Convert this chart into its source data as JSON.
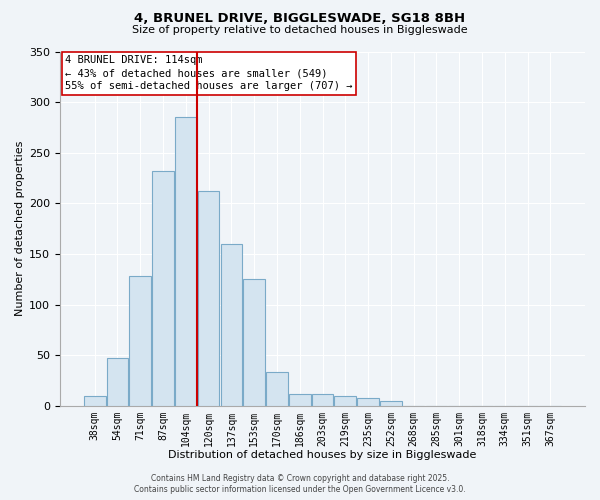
{
  "title1": "4, BRUNEL DRIVE, BIGGLESWADE, SG18 8BH",
  "title2": "Size of property relative to detached houses in Biggleswade",
  "xlabel": "Distribution of detached houses by size in Biggleswade",
  "ylabel": "Number of detached properties",
  "bar_labels": [
    "38sqm",
    "54sqm",
    "71sqm",
    "87sqm",
    "104sqm",
    "120sqm",
    "137sqm",
    "153sqm",
    "170sqm",
    "186sqm",
    "203sqm",
    "219sqm",
    "235sqm",
    "252sqm",
    "268sqm",
    "285sqm",
    "301sqm",
    "318sqm",
    "334sqm",
    "351sqm",
    "367sqm"
  ],
  "bar_values": [
    10,
    47,
    128,
    232,
    285,
    212,
    160,
    125,
    33,
    12,
    12,
    10,
    8,
    5,
    0,
    0,
    0,
    0,
    0,
    0,
    0
  ],
  "bar_color": "#d4e4f0",
  "bar_edge_color": "#7aaac8",
  "ylim": [
    0,
    350
  ],
  "yticks": [
    0,
    50,
    100,
    150,
    200,
    250,
    300,
    350
  ],
  "vline_color": "#cc0000",
  "annotation_title": "4 BRUNEL DRIVE: 114sqm",
  "annotation_line1": "← 43% of detached houses are smaller (549)",
  "annotation_line2": "55% of semi-detached houses are larger (707) →",
  "footer1": "Contains HM Land Registry data © Crown copyright and database right 2025.",
  "footer2": "Contains public sector information licensed under the Open Government Licence v3.0.",
  "bg_color": "#f0f4f8",
  "grid_color": "#c8d4e0"
}
